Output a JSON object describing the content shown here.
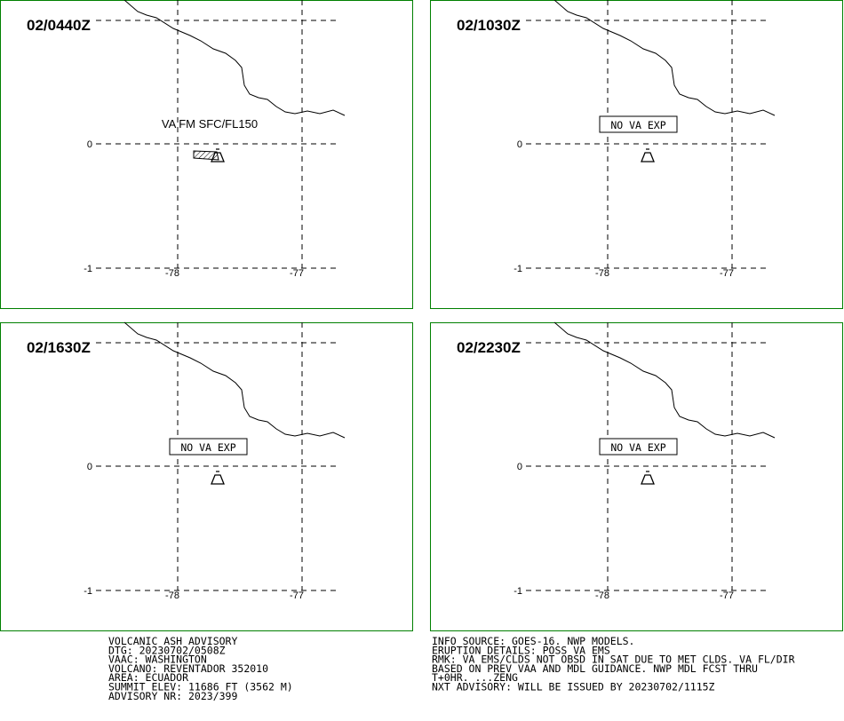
{
  "panels": [
    {
      "time": "02/0440Z",
      "annotation": "VA FM SFC/FL150",
      "boxed": false,
      "ash_cloud": true,
      "lat_labels": [
        "0",
        "-1"
      ],
      "lon_labels": [
        "-78",
        "-77"
      ]
    },
    {
      "time": "02/1030Z",
      "annotation": "NO VA EXP",
      "boxed": true,
      "ash_cloud": false,
      "lat_labels": [
        "0",
        "-1"
      ],
      "lon_labels": [
        "-78",
        "-77"
      ]
    },
    {
      "time": "02/1630Z",
      "annotation": "NO VA EXP",
      "boxed": true,
      "ash_cloud": false,
      "lat_labels": [
        "0",
        "-1"
      ],
      "lon_labels": [
        "-78",
        "-77"
      ]
    },
    {
      "time": "02/2230Z",
      "annotation": "NO VA EXP",
      "boxed": true,
      "ash_cloud": false,
      "lat_labels": [
        "0",
        "-1"
      ],
      "lon_labels": [
        "-78",
        "-77"
      ]
    }
  ],
  "text_left": [
    "VOLCANIC ASH ADVISORY",
    "DTG: 20230702/0508Z",
    "VAAC: WASHINGTON",
    "VOLCANO: REVENTADOR 352010",
    "AREA: ECUADOR",
    "SUMMIT ELEV: 11686 FT (3562 M)",
    "ADVISORY NR: 2023/399"
  ],
  "text_right": [
    "INFO SOURCE: GOES-16. NWP MODELS.",
    "ERUPTION DETAILS: POSS VA EMS",
    "RMK: VA EMS/CLDS NOT OBSD IN SAT DUE TO MET CLDS. VA FL/DIR",
    "BASED ON PREV VAA AND MDL GUIDANCE. NWP MDL FCST THRU",
    "T+0HR. ...ZENG",
    "NXT ADVISORY: WILL BE ISSUED BY 20230702/1115Z"
  ]
}
